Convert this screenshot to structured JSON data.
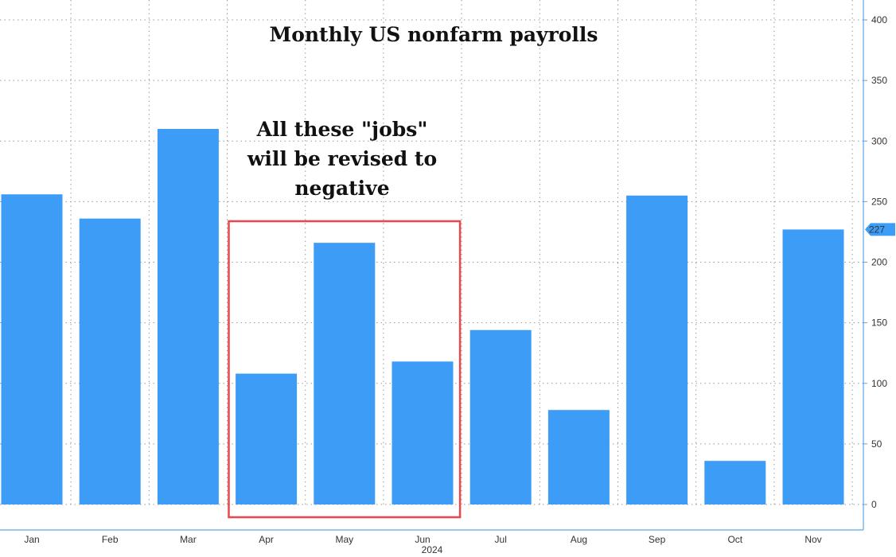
{
  "chart_data": {
    "type": "bar",
    "title": "Monthly US nonfarm payrolls",
    "categories": [
      "Jan",
      "Feb",
      "Mar",
      "Apr",
      "May",
      "Jun",
      "Jul",
      "Aug",
      "Sep",
      "Oct",
      "Nov"
    ],
    "values": [
      256,
      236,
      310,
      108,
      216,
      118,
      144,
      78,
      255,
      36,
      227
    ],
    "x_group_label": "2024",
    "ylim": [
      0,
      400
    ],
    "y_ticks": [
      0,
      50,
      100,
      150,
      200,
      250,
      300,
      350,
      400
    ],
    "y_axis_side": "right",
    "last_value_label": "227",
    "annotation": {
      "lines": [
        "All these \"jobs\"",
        "will be revised to",
        "negative"
      ],
      "highlight_categories": [
        "Apr",
        "May",
        "Jun"
      ]
    },
    "grid": true,
    "colors": {
      "bar": "#3d9df6",
      "annotation_box": "#e8474b",
      "axis": "#5aa7e8",
      "grid": "#9a9a9a"
    }
  }
}
